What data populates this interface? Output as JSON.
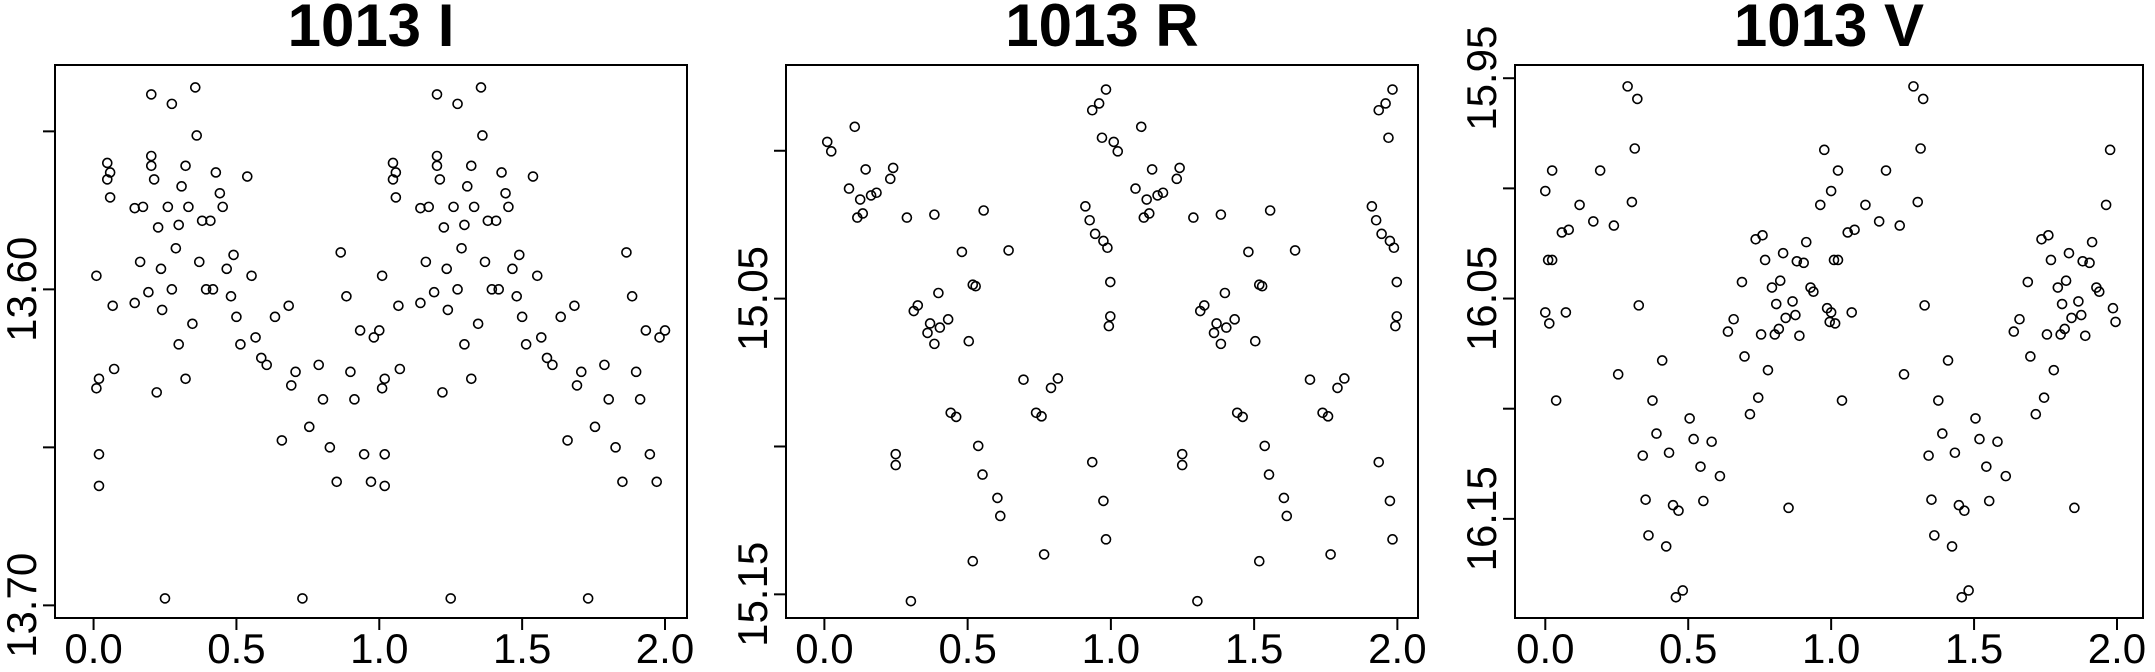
{
  "chart_data": [
    {
      "type": "scatter",
      "title": "1013 I",
      "color": "#000000",
      "xlim": [
        -0.135,
        2.077
      ],
      "ylim": [
        13.704,
        13.529
      ],
      "xticks": [
        {
          "value": 0,
          "label": "0.0"
        },
        {
          "value": 0.5,
          "label": "0.5"
        },
        {
          "value": 1,
          "label": "1.0"
        },
        {
          "value": 1.5,
          "label": "1.5"
        },
        {
          "value": 2,
          "label": "2.0"
        }
      ],
      "yticks": [
        {
          "value": 13.6,
          "label": "13.60"
        },
        {
          "value": 13.7,
          "label": "13.70"
        }
      ],
      "yticks_minor": [
        13.55,
        13.65
      ],
      "x": [
        0.01,
        0.01,
        0.019,
        0.019,
        0.019,
        0.048,
        0.048,
        0.058,
        0.058,
        0.067,
        0.072,
        0.144,
        0.144,
        0.163,
        0.173,
        0.192,
        0.202,
        0.202,
        0.202,
        0.212,
        0.221,
        0.226,
        0.236,
        0.24,
        0.25,
        0.26,
        0.274,
        0.274,
        0.288,
        0.298,
        0.298,
        0.308,
        0.322,
        0.322,
        0.332,
        0.346,
        0.356,
        0.361,
        0.37,
        0.38,
        0.394,
        0.409,
        0.418,
        0.428,
        0.442,
        0.452,
        0.466,
        0.481,
        0.49,
        0.5,
        0.514,
        0.538,
        0.553,
        0.567,
        0.587,
        0.606,
        0.635,
        0.659,
        0.683,
        0.692,
        0.707,
        0.731,
        0.755,
        0.788,
        0.803,
        0.827,
        0.851,
        0.865,
        0.885,
        0.899,
        0.913,
        0.933,
        0.947,
        0.971,
        0.981,
        1.0,
        1.01,
        1.01,
        1.019,
        1.019,
        1.019,
        1.048,
        1.048,
        1.058,
        1.058,
        1.067,
        1.072,
        1.144,
        1.144,
        1.163,
        1.173,
        1.192,
        1.202,
        1.202,
        1.202,
        1.212,
        1.221,
        1.226,
        1.236,
        1.24,
        1.25,
        1.26,
        1.274,
        1.274,
        1.288,
        1.298,
        1.298,
        1.308,
        1.322,
        1.322,
        1.332,
        1.346,
        1.356,
        1.361,
        1.37,
        1.38,
        1.394,
        1.409,
        1.418,
        1.428,
        1.442,
        1.452,
        1.466,
        1.481,
        1.49,
        1.5,
        1.514,
        1.538,
        1.553,
        1.567,
        1.587,
        1.606,
        1.635,
        1.659,
        1.683,
        1.692,
        1.707,
        1.731,
        1.755,
        1.788,
        1.803,
        1.827,
        1.851,
        1.865,
        1.885,
        1.899,
        1.913,
        1.933,
        1.947,
        1.971,
        1.981,
        2.0
      ],
      "values": [
        13.5957,
        13.6313,
        13.6283,
        13.6522,
        13.6622,
        13.56,
        13.5652,
        13.563,
        13.5709,
        13.6052,
        13.6252,
        13.5743,
        13.6043,
        13.5913,
        13.5739,
        13.6009,
        13.5383,
        13.5578,
        13.5609,
        13.5652,
        13.6326,
        13.5804,
        13.5935,
        13.6065,
        13.6978,
        13.5739,
        13.5413,
        13.6,
        13.587,
        13.5796,
        13.6174,
        13.5674,
        13.5609,
        13.6283,
        13.5739,
        13.6109,
        13.5361,
        13.5513,
        13.5913,
        13.5783,
        13.6,
        13.5783,
        13.6,
        13.563,
        13.5696,
        13.5739,
        13.5935,
        13.6022,
        13.5891,
        13.6087,
        13.6174,
        13.5643,
        13.5957,
        13.6152,
        13.6217,
        13.6239,
        13.6087,
        13.6478,
        13.6052,
        13.6304,
        13.6261,
        13.6978,
        13.6435,
        13.6239,
        13.6348,
        13.65,
        13.6609,
        13.5883,
        13.6022,
        13.6261,
        13.6348,
        13.613,
        13.6522,
        13.6609,
        13.6152,
        13.613,
        13.5957,
        13.6313,
        13.6283,
        13.6522,
        13.6622,
        13.56,
        13.5652,
        13.563,
        13.5709,
        13.6052,
        13.6252,
        13.5743,
        13.6043,
        13.5913,
        13.5739,
        13.6009,
        13.5383,
        13.5578,
        13.5609,
        13.5652,
        13.6326,
        13.5804,
        13.5935,
        13.6065,
        13.6978,
        13.5739,
        13.5413,
        13.6,
        13.587,
        13.5796,
        13.6174,
        13.5674,
        13.5609,
        13.6283,
        13.5739,
        13.6109,
        13.5361,
        13.5513,
        13.5913,
        13.5783,
        13.6,
        13.5783,
        13.6,
        13.563,
        13.5696,
        13.5739,
        13.5935,
        13.6022,
        13.5891,
        13.6087,
        13.6174,
        13.5643,
        13.5957,
        13.6152,
        13.6217,
        13.6239,
        13.6087,
        13.6478,
        13.6052,
        13.6304,
        13.6261,
        13.6978,
        13.6435,
        13.6239,
        13.6348,
        13.65,
        13.6609,
        13.5883,
        13.6022,
        13.6261,
        13.6348,
        13.613,
        13.6522,
        13.6609,
        13.6152,
        13.613
      ]
    },
    {
      "type": "scatter",
      "title": "1013 R",
      "color": "#000000",
      "xlim": [
        -0.134,
        2.072
      ],
      "ylim": [
        15.158,
        14.971
      ],
      "xticks": [
        {
          "value": 0,
          "label": "0.0"
        },
        {
          "value": 0.5,
          "label": "0.5"
        },
        {
          "value": 1,
          "label": "1.0"
        },
        {
          "value": 1.5,
          "label": "1.5"
        },
        {
          "value": 2,
          "label": "2.0"
        }
      ],
      "yticks": [
        {
          "value": 15.05,
          "label": "15.05"
        },
        {
          "value": 15.15,
          "label": "15.15"
        }
      ],
      "yticks_minor": [
        15.0,
        15.1
      ],
      "x": [
        0.01,
        0.024,
        0.086,
        0.106,
        0.115,
        0.125,
        0.134,
        0.144,
        0.163,
        0.182,
        0.23,
        0.24,
        0.249,
        0.249,
        0.288,
        0.302,
        0.312,
        0.326,
        0.36,
        0.369,
        0.384,
        0.384,
        0.398,
        0.403,
        0.432,
        0.441,
        0.46,
        0.48,
        0.504,
        0.518,
        0.518,
        0.528,
        0.537,
        0.552,
        0.556,
        0.604,
        0.614,
        0.643,
        0.695,
        0.739,
        0.758,
        0.767,
        0.791,
        0.815,
        0.911,
        0.926,
        0.935,
        0.935,
        0.945,
        0.959,
        0.969,
        0.974,
        0.974,
        0.983,
        0.983,
        0.988,
        0.993,
        0.998,
        0.998,
        1.01,
        1.024,
        1.086,
        1.106,
        1.115,
        1.125,
        1.134,
        1.144,
        1.163,
        1.182,
        1.23,
        1.24,
        1.249,
        1.249,
        1.288,
        1.302,
        1.312,
        1.326,
        1.36,
        1.369,
        1.384,
        1.384,
        1.398,
        1.403,
        1.432,
        1.441,
        1.46,
        1.48,
        1.504,
        1.518,
        1.518,
        1.528,
        1.537,
        1.552,
        1.556,
        1.604,
        1.614,
        1.643,
        1.695,
        1.739,
        1.758,
        1.767,
        1.791,
        1.815,
        1.911,
        1.926,
        1.935,
        1.935,
        1.945,
        1.959,
        1.969,
        1.974,
        1.974,
        1.983,
        1.983,
        1.988,
        1.993,
        1.998,
        1.998
      ],
      "values": [
        14.997,
        15.0002,
        15.0128,
        14.9919,
        15.0226,
        15.0165,
        15.0212,
        15.0063,
        15.0151,
        15.0142,
        15.0095,
        15.0058,
        15.1026,
        15.1063,
        15.0226,
        15.1523,
        15.0542,
        15.0523,
        15.0616,
        15.0584,
        15.0216,
        15.0653,
        15.0481,
        15.0598,
        15.057,
        15.0886,
        15.09,
        15.0342,
        15.0644,
        15.0453,
        15.1388,
        15.0458,
        15.0998,
        15.1095,
        15.0202,
        15.1174,
        15.1235,
        15.0337,
        15.0774,
        15.0886,
        15.0898,
        15.1365,
        15.0802,
        15.077,
        15.0188,
        15.0235,
        14.9863,
        15.1053,
        15.0281,
        14.984,
        14.9956,
        15.0305,
        15.1184,
        14.9793,
        15.1314,
        15.0328,
        15.0593,
        15.0444,
        15.056,
        14.997,
        15.0002,
        15.0128,
        14.9919,
        15.0226,
        15.0165,
        15.0212,
        15.0063,
        15.0151,
        15.0142,
        15.0095,
        15.0058,
        15.1026,
        15.1063,
        15.0226,
        15.1523,
        15.0542,
        15.0523,
        15.0616,
        15.0584,
        15.0216,
        15.0653,
        15.0481,
        15.0598,
        15.057,
        15.0886,
        15.09,
        15.0342,
        15.0644,
        15.0453,
        15.1388,
        15.0458,
        15.0998,
        15.1095,
        15.0202,
        15.1174,
        15.1235,
        15.0337,
        15.0774,
        15.0886,
        15.0898,
        15.1365,
        15.0802,
        15.077,
        15.0188,
        15.0235,
        14.9863,
        15.1053,
        15.0281,
        14.984,
        14.9956,
        15.0305,
        15.1184,
        14.9793,
        15.1314,
        15.0328,
        15.0593,
        15.0444,
        15.056
      ]
    },
    {
      "type": "scatter",
      "title": "1013 V",
      "color": "#000000",
      "xlim": [
        -0.106,
        2.091
      ],
      "ylim": [
        16.195,
        15.944
      ],
      "xticks": [
        {
          "value": 0,
          "label": "0.0"
        },
        {
          "value": 0.5,
          "label": "0.5"
        },
        {
          "value": 1,
          "label": "1.0"
        },
        {
          "value": 1.5,
          "label": "1.5"
        },
        {
          "value": 2,
          "label": "2.0"
        }
      ],
      "yticks": [
        {
          "value": 15.95,
          "label": "15.95"
        },
        {
          "value": 16.05,
          "label": "16.05"
        },
        {
          "value": 16.15,
          "label": "16.15"
        }
      ],
      "yticks_minor": [
        16.0,
        16.1
      ],
      "x": [
        0.0,
        0.0,
        0.01,
        0.014,
        0.024,
        0.024,
        0.038,
        0.058,
        0.072,
        0.082,
        0.12,
        0.168,
        0.192,
        0.24,
        0.255,
        0.288,
        0.303,
        0.313,
        0.322,
        0.327,
        0.341,
        0.351,
        0.361,
        0.375,
        0.389,
        0.409,
        0.423,
        0.433,
        0.447,
        0.457,
        0.466,
        0.481,
        0.505,
        0.519,
        0.543,
        0.553,
        0.582,
        0.611,
        0.639,
        0.659,
        0.688,
        0.697,
        0.716,
        0.736,
        0.745,
        0.755,
        0.76,
        0.769,
        0.779,
        0.793,
        0.803,
        0.808,
        0.817,
        0.822,
        0.832,
        0.841,
        0.851,
        0.865,
        0.875,
        0.88,
        0.889,
        0.904,
        0.913,
        0.928,
        0.938,
        0.962,
        0.976,
        0.986,
        0.995,
        1.0,
        1.0,
        1.01,
        1.014,
        1.024,
        1.024,
        1.038,
        1.058,
        1.072,
        1.082,
        1.12,
        1.168,
        1.192,
        1.24,
        1.255,
        1.288,
        1.303,
        1.313,
        1.322,
        1.327,
        1.341,
        1.351,
        1.361,
        1.375,
        1.389,
        1.409,
        1.423,
        1.433,
        1.447,
        1.457,
        1.466,
        1.481,
        1.505,
        1.519,
        1.543,
        1.553,
        1.582,
        1.611,
        1.639,
        1.659,
        1.688,
        1.697,
        1.716,
        1.736,
        1.745,
        1.755,
        1.76,
        1.769,
        1.779,
        1.793,
        1.803,
        1.808,
        1.817,
        1.822,
        1.832,
        1.841,
        1.851,
        1.865,
        1.875,
        1.88,
        1.889,
        1.904,
        1.913,
        1.928,
        1.938,
        1.962,
        1.976,
        1.986,
        1.995
      ],
      "values": [
        16.0012,
        16.0563,
        16.0325,
        16.0613,
        16.0325,
        15.9919,
        16.0963,
        16.02,
        16.0563,
        16.0188,
        16.0075,
        16.015,
        15.9919,
        16.0169,
        16.0844,
        15.9537,
        16.0062,
        15.9819,
        15.9594,
        16.0531,
        16.1213,
        16.1413,
        16.1575,
        16.0963,
        16.1113,
        16.0781,
        16.1625,
        16.12,
        16.1438,
        16.1856,
        16.1463,
        16.1825,
        16.1044,
        16.1138,
        16.1263,
        16.1419,
        16.115,
        16.1306,
        16.065,
        16.0594,
        16.0425,
        16.0763,
        16.1025,
        16.0231,
        16.095,
        16.0663,
        16.0213,
        16.0325,
        16.0825,
        16.045,
        16.0663,
        16.0525,
        16.0638,
        16.0419,
        16.0294,
        16.0588,
        16.145,
        16.0513,
        16.0575,
        16.0331,
        16.0669,
        16.0338,
        16.0244,
        16.045,
        16.0469,
        16.0075,
        15.9825,
        16.0544,
        16.0606,
        16.0012,
        16.0563,
        16.0325,
        16.0613,
        16.0325,
        15.9919,
        16.0963,
        16.02,
        16.0563,
        16.0188,
        16.0075,
        16.015,
        15.9919,
        16.0169,
        16.0844,
        15.9537,
        16.0062,
        15.9819,
        15.9594,
        16.0531,
        16.1213,
        16.1413,
        16.1575,
        16.0963,
        16.1113,
        16.0781,
        16.1625,
        16.12,
        16.1438,
        16.1856,
        16.1463,
        16.1825,
        16.1044,
        16.1138,
        16.1263,
        16.1419,
        16.115,
        16.1306,
        16.065,
        16.0594,
        16.0425,
        16.0763,
        16.1025,
        16.0231,
        16.095,
        16.0663,
        16.0213,
        16.0325,
        16.0825,
        16.045,
        16.0663,
        16.0525,
        16.0638,
        16.0419,
        16.0294,
        16.0588,
        16.145,
        16.0513,
        16.0575,
        16.0331,
        16.0669,
        16.0338,
        16.0244,
        16.045,
        16.0469,
        16.0075,
        15.9825,
        16.0544,
        16.0606
      ]
    }
  ]
}
